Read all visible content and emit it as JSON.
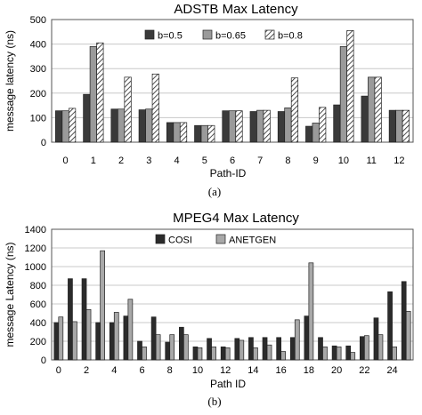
{
  "chart_data": [
    {
      "type": "bar",
      "title": "ADSTB Max Latency",
      "caption": "(a)",
      "xlabel": "Path-ID",
      "ylabel": "message latency (ns)",
      "ylim": [
        0,
        500
      ],
      "yticks": [
        0,
        100,
        200,
        300,
        400,
        500
      ],
      "grid": true,
      "legend_position": "top-right",
      "categories": [
        "0",
        "1",
        "2",
        "3",
        "4",
        "5",
        "6",
        "7",
        "8",
        "9",
        "10",
        "11",
        "12"
      ],
      "series": [
        {
          "name": "b=0.5",
          "color": "#3a3a3a",
          "pattern": "solid",
          "values": [
            128,
            195,
            135,
            132,
            80,
            68,
            128,
            125,
            125,
            65,
            152,
            188,
            130
          ]
        },
        {
          "name": "b=0.65",
          "color": "#9a9a9a",
          "pattern": "solid",
          "values": [
            128,
            390,
            135,
            135,
            80,
            68,
            128,
            130,
            140,
            78,
            390,
            265,
            130
          ]
        },
        {
          "name": "b=0.8",
          "color": "#ffffff",
          "pattern": "hatch",
          "values": [
            138,
            405,
            265,
            278,
            80,
            68,
            128,
            130,
            262,
            142,
            455,
            265,
            130
          ]
        }
      ]
    },
    {
      "type": "bar",
      "title": "MPEG4 Max Latency",
      "caption": "(b)",
      "xlabel": "Path ID",
      "ylabel": "message Latency (ns)",
      "ylim": [
        0,
        1400
      ],
      "yticks": [
        0,
        200,
        400,
        600,
        800,
        1000,
        1200,
        1400
      ],
      "grid": true,
      "legend_position": "top-center",
      "categories": [
        "0",
        "1",
        "2",
        "3",
        "4",
        "5",
        "6",
        "7",
        "8",
        "9",
        "10",
        "11",
        "12",
        "13",
        "14",
        "15",
        "16",
        "17",
        "18",
        "19",
        "20",
        "21",
        "22",
        "23",
        "24",
        "25"
      ],
      "xtick_labels": [
        "0",
        "2",
        "4",
        "6",
        "8",
        "10",
        "12",
        "14",
        "16",
        "18",
        "20",
        "22",
        "24"
      ],
      "series": [
        {
          "name": "COSI",
          "color": "#2b2b2b",
          "values": [
            400,
            870,
            870,
            400,
            400,
            470,
            200,
            460,
            190,
            350,
            140,
            230,
            140,
            230,
            240,
            240,
            240,
            240,
            470,
            240,
            150,
            150,
            250,
            450,
            730,
            840
          ]
        },
        {
          "name": "ANETGEN",
          "color": "#a8a8a8",
          "values": [
            460,
            410,
            540,
            1170,
            510,
            650,
            140,
            270,
            270,
            270,
            130,
            140,
            130,
            210,
            130,
            160,
            90,
            430,
            1040,
            140,
            140,
            80,
            260,
            270,
            140,
            520
          ]
        }
      ]
    }
  ]
}
